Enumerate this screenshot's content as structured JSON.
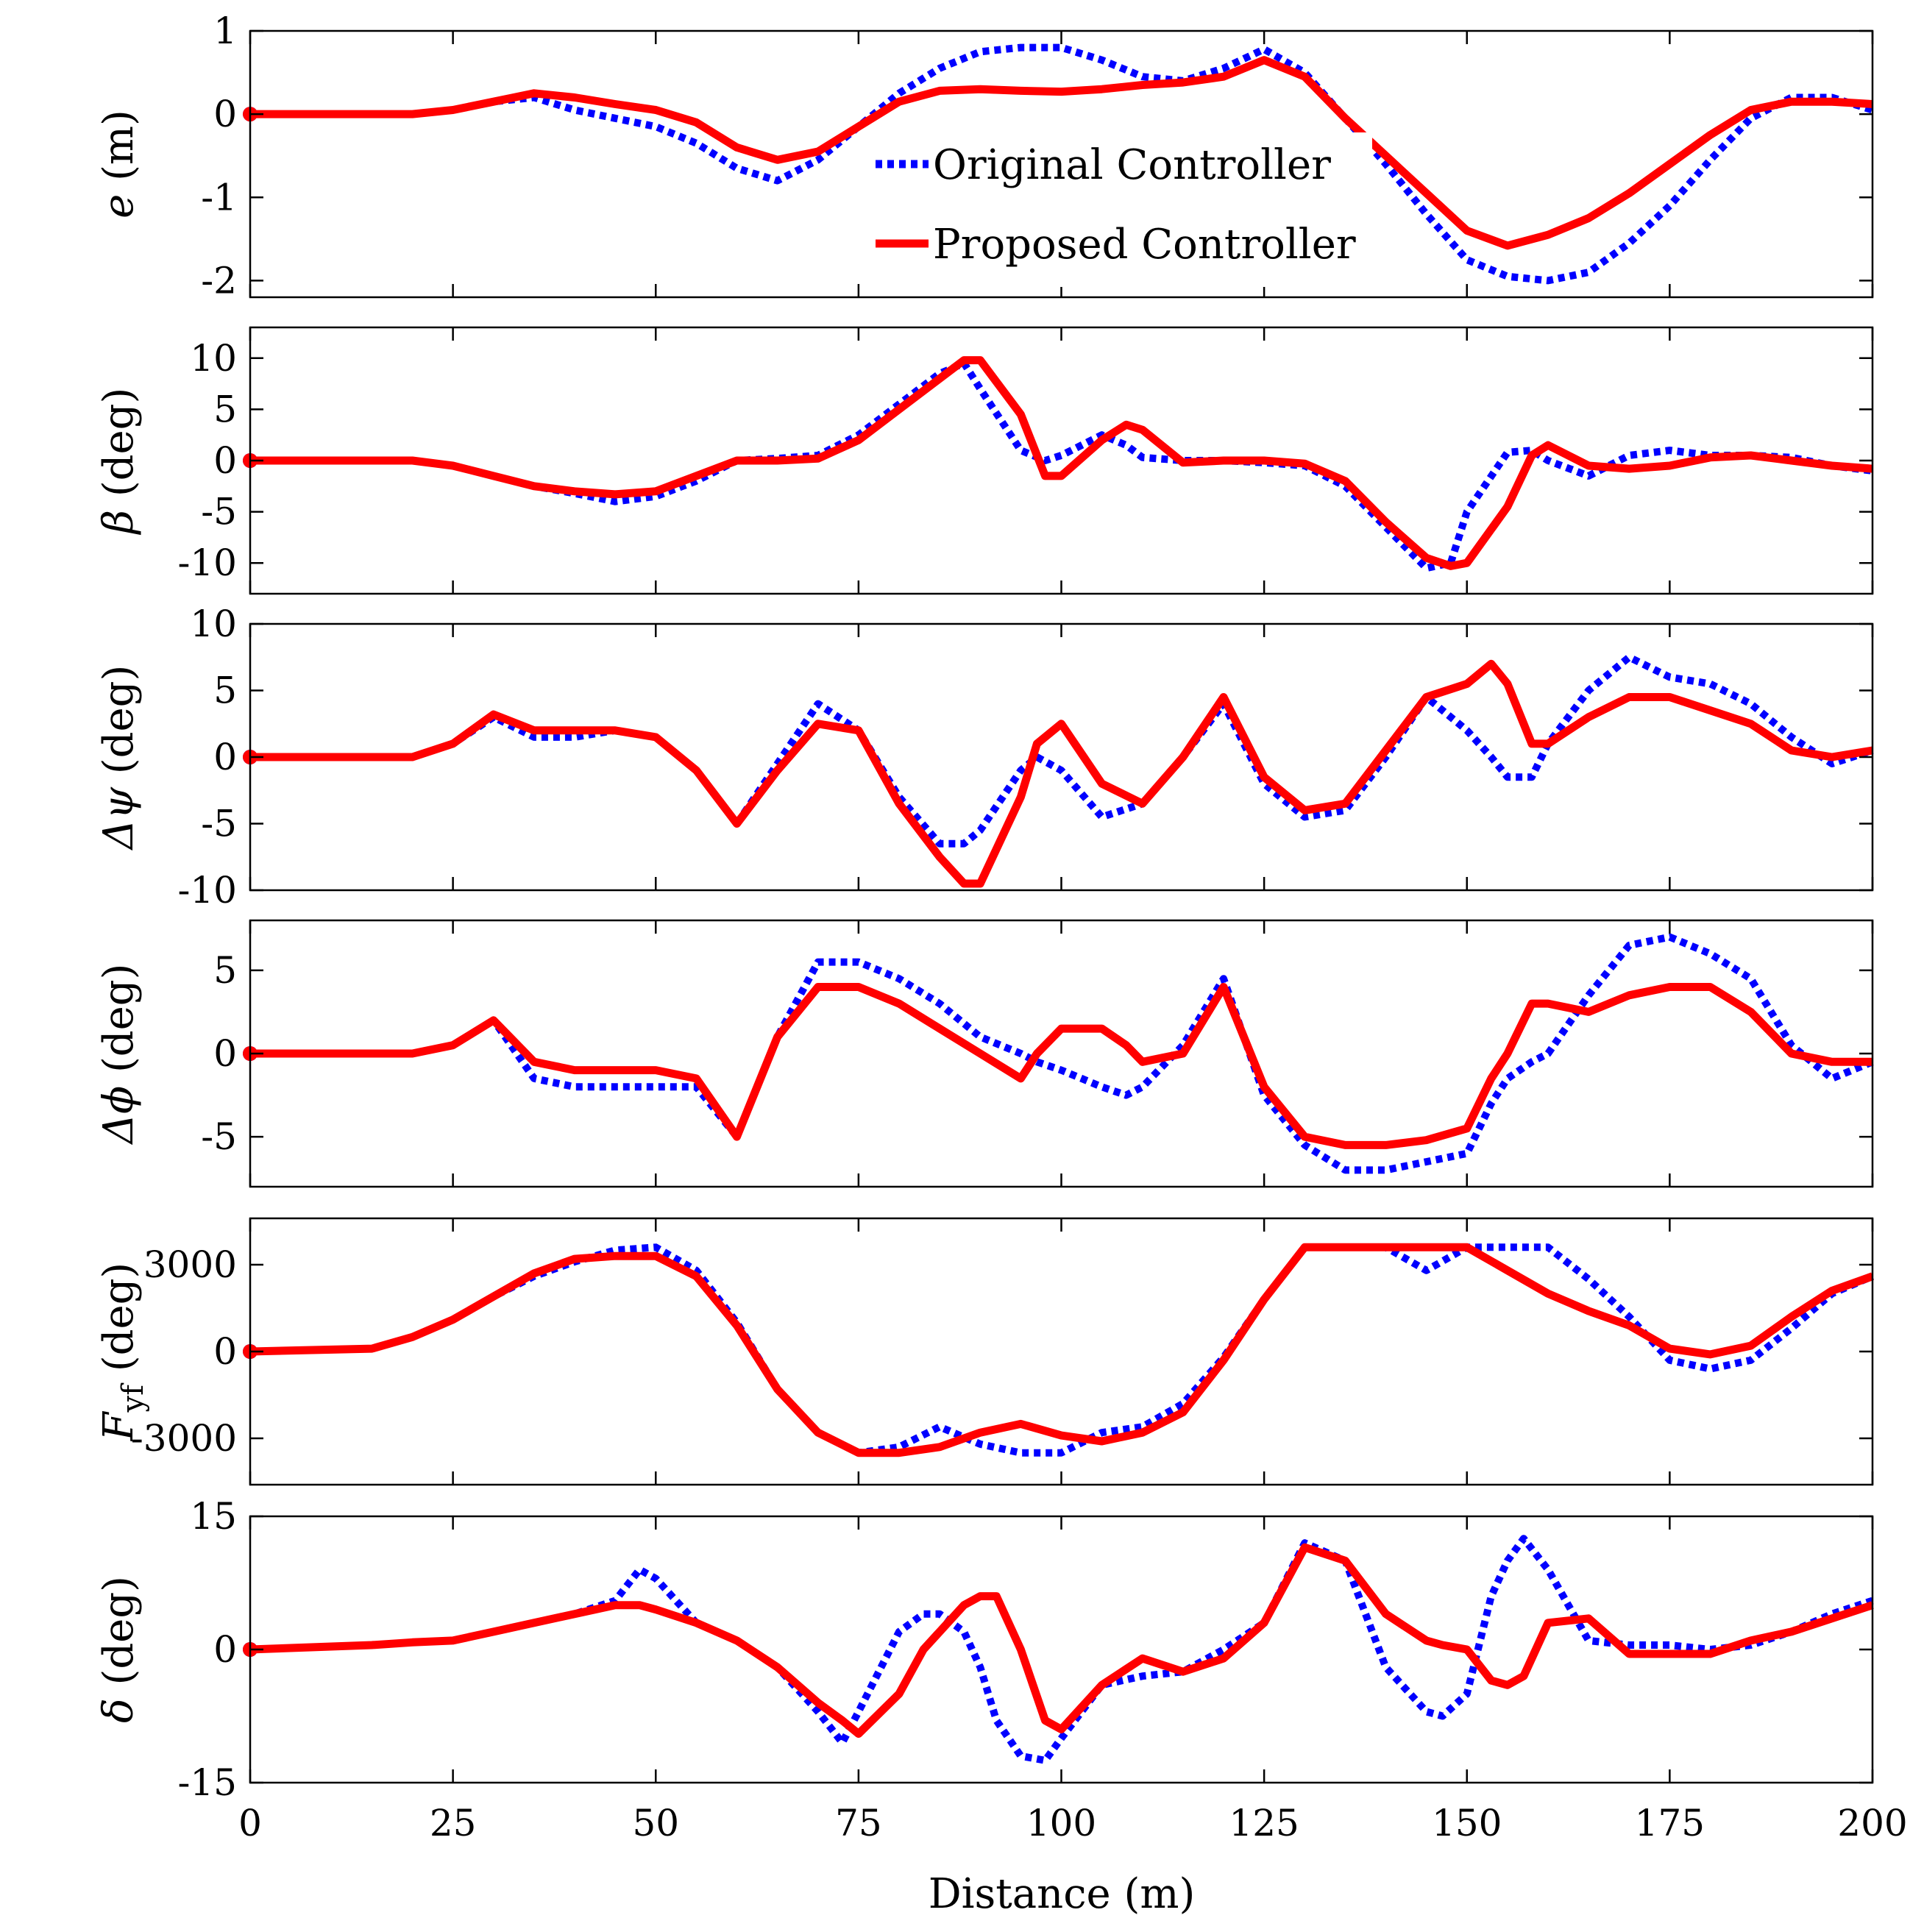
{
  "figure": {
    "xlabel": "Distance (m)",
    "xticks": [
      0,
      25,
      50,
      75,
      100,
      125,
      150,
      175,
      200
    ],
    "xlim": [
      0,
      200
    ],
    "legend": {
      "position": "inside-top-panel-center",
      "entries": [
        {
          "label": "Original Controller",
          "style": "dotted",
          "color": "#0000ff"
        },
        {
          "label": "Proposed Controller",
          "style": "solid",
          "color": "#ff0000"
        }
      ]
    }
  },
  "chart_data": [
    {
      "type": "line",
      "id": "e",
      "ylabel_main": "e",
      "ylabel_rest": " (m)",
      "ylim": [
        -2.2,
        1.0
      ],
      "yticks": [
        -2,
        -1,
        0,
        1
      ],
      "x": [
        0,
        15,
        20,
        25,
        30,
        35,
        40,
        45,
        50,
        55,
        60,
        65,
        70,
        75,
        80,
        85,
        90,
        95,
        100,
        105,
        110,
        115,
        120,
        125,
        130,
        135,
        140,
        145,
        150,
        155,
        160,
        165,
        170,
        175,
        180,
        185,
        190,
        195,
        200
      ],
      "series": [
        {
          "name": "Original Controller",
          "color": "#0000ff",
          "style": "dotted",
          "values": [
            0,
            0,
            0,
            0.05,
            0.15,
            0.2,
            0.05,
            -0.05,
            -0.15,
            -0.35,
            -0.65,
            -0.8,
            -0.55,
            -0.15,
            0.25,
            0.55,
            0.75,
            0.8,
            0.8,
            0.65,
            0.45,
            0.4,
            0.55,
            0.78,
            0.5,
            -0.05,
            -0.6,
            -1.2,
            -1.75,
            -1.95,
            -2.0,
            -1.9,
            -1.55,
            -1.1,
            -0.55,
            -0.05,
            0.2,
            0.2,
            0.05
          ]
        },
        {
          "name": "Proposed Controller",
          "color": "#ff0000",
          "style": "solid",
          "values": [
            0,
            0,
            0,
            0.05,
            0.15,
            0.25,
            0.2,
            0.12,
            0.05,
            -0.1,
            -0.4,
            -0.55,
            -0.45,
            -0.15,
            0.15,
            0.28,
            0.3,
            0.28,
            0.27,
            0.3,
            0.35,
            0.38,
            0.45,
            0.65,
            0.45,
            -0.05,
            -0.5,
            -0.95,
            -1.4,
            -1.58,
            -1.45,
            -1.25,
            -0.95,
            -0.6,
            -0.25,
            0.05,
            0.15,
            0.15,
            0.12
          ]
        }
      ]
    },
    {
      "type": "line",
      "id": "beta",
      "ylabel_main": "β",
      "ylabel_rest": " (deg)",
      "ylim": [
        -13,
        13
      ],
      "yticks": [
        -10,
        -5,
        0,
        5,
        10
      ],
      "x": [
        0,
        15,
        20,
        25,
        30,
        35,
        40,
        45,
        50,
        55,
        60,
        65,
        70,
        75,
        80,
        85,
        88,
        90,
        95,
        98,
        100,
        105,
        108,
        110,
        115,
        120,
        125,
        130,
        135,
        140,
        145,
        148,
        150,
        155,
        158,
        160,
        165,
        170,
        175,
        180,
        185,
        190,
        195,
        200
      ],
      "series": [
        {
          "name": "Original Controller",
          "color": "#0000ff",
          "style": "dotted",
          "values": [
            0,
            0,
            0,
            -0.5,
            -1.5,
            -2.5,
            -3.2,
            -4.0,
            -3.5,
            -2.0,
            0,
            0.2,
            0.5,
            2.5,
            5.5,
            8.5,
            9.5,
            7.0,
            1.0,
            0,
            0.5,
            2.5,
            1.5,
            0.3,
            0,
            0,
            -0.2,
            -0.5,
            -2.5,
            -6.5,
            -10.5,
            -10.0,
            -5.0,
            0.8,
            1.0,
            0,
            -1.5,
            0.5,
            1.0,
            0.5,
            0.5,
            0.3,
            -0.5,
            -1.0
          ]
        },
        {
          "name": "Proposed Controller",
          "color": "#ff0000",
          "style": "solid",
          "values": [
            0,
            0,
            0,
            -0.5,
            -1.5,
            -2.5,
            -3.0,
            -3.3,
            -3.0,
            -1.5,
            0,
            0,
            0.2,
            2.0,
            5.0,
            8.0,
            9.8,
            9.8,
            4.5,
            -1.5,
            -1.5,
            2.0,
            3.5,
            3.0,
            -0.2,
            0,
            0,
            -0.3,
            -2.0,
            -6.0,
            -9.5,
            -10.3,
            -10.0,
            -4.5,
            0.5,
            1.5,
            -0.5,
            -0.8,
            -0.5,
            0.3,
            0.5,
            0,
            -0.5,
            -0.8
          ]
        }
      ]
    },
    {
      "type": "line",
      "id": "dpsi",
      "ylabel_main": "Δψ",
      "ylabel_rest": " (deg)",
      "ylim": [
        -10,
        10
      ],
      "yticks": [
        -10,
        -5,
        0,
        5,
        10
      ],
      "x": [
        0,
        15,
        20,
        25,
        30,
        35,
        40,
        45,
        50,
        55,
        60,
        65,
        70,
        75,
        80,
        85,
        88,
        90,
        95,
        97,
        100,
        105,
        110,
        115,
        120,
        125,
        130,
        135,
        140,
        145,
        150,
        153,
        155,
        158,
        160,
        165,
        170,
        175,
        180,
        185,
        190,
        195,
        200
      ],
      "series": [
        {
          "name": "Original Controller",
          "color": "#0000ff",
          "style": "dotted",
          "values": [
            0,
            0,
            0,
            1.0,
            3.0,
            1.5,
            1.5,
            2.0,
            1.5,
            -1.0,
            -5.0,
            -0.5,
            4.0,
            2.0,
            -3.0,
            -6.5,
            -6.5,
            -5.5,
            -1.0,
            0,
            -1.0,
            -4.5,
            -3.5,
            0,
            4.0,
            -2.0,
            -4.5,
            -4.0,
            0,
            4.5,
            2.0,
            0,
            -1.5,
            -1.5,
            1.0,
            5.0,
            7.5,
            6.0,
            5.5,
            4.0,
            1.5,
            -0.5,
            0.5
          ]
        },
        {
          "name": "Proposed Controller",
          "color": "#ff0000",
          "style": "solid",
          "values": [
            0,
            0,
            0,
            1.0,
            3.2,
            2.0,
            2.0,
            2.0,
            1.5,
            -1.0,
            -5.0,
            -1.0,
            2.5,
            2.0,
            -3.5,
            -7.5,
            -9.5,
            -9.5,
            -3.0,
            1.0,
            2.5,
            -2.0,
            -3.5,
            0,
            4.5,
            -1.5,
            -4.0,
            -3.5,
            0.5,
            4.5,
            5.5,
            7.0,
            5.5,
            1.0,
            1.0,
            3.0,
            4.5,
            4.5,
            3.5,
            2.5,
            0.5,
            0,
            0.5
          ]
        }
      ]
    },
    {
      "type": "line",
      "id": "dphi",
      "ylabel_main": "Δϕ",
      "ylabel_rest": " (deg)",
      "ylim": [
        -8,
        8
      ],
      "yticks": [
        -5,
        0,
        5
      ],
      "x": [
        0,
        15,
        20,
        25,
        30,
        35,
        40,
        45,
        50,
        55,
        60,
        65,
        70,
        75,
        80,
        85,
        90,
        95,
        97,
        100,
        105,
        108,
        110,
        115,
        120,
        125,
        130,
        135,
        140,
        145,
        150,
        153,
        155,
        158,
        160,
        165,
        170,
        175,
        180,
        185,
        190,
        195,
        200
      ],
      "series": [
        {
          "name": "Original Controller",
          "color": "#0000ff",
          "style": "dotted",
          "values": [
            0,
            0,
            0,
            0.5,
            2.0,
            -1.5,
            -2.0,
            -2.0,
            -2.0,
            -2.0,
            -5.0,
            1.0,
            5.5,
            5.5,
            4.5,
            3.0,
            1.0,
            0,
            -0.5,
            -1.0,
            -2.0,
            -2.5,
            -2.0,
            0.5,
            4.5,
            -2.5,
            -5.5,
            -7.0,
            -7.0,
            -6.5,
            -6.0,
            -3.0,
            -1.5,
            -0.5,
            0,
            3.5,
            6.5,
            7.0,
            6.0,
            4.5,
            0.5,
            -1.5,
            -0.5
          ]
        },
        {
          "name": "Proposed Controller",
          "color": "#ff0000",
          "style": "solid",
          "values": [
            0,
            0,
            0,
            0.5,
            2.0,
            -0.5,
            -1.0,
            -1.0,
            -1.0,
            -1.5,
            -5.0,
            1.0,
            4.0,
            4.0,
            3.0,
            1.5,
            0,
            -1.5,
            0,
            1.5,
            1.5,
            0.5,
            -0.5,
            0,
            4.0,
            -2.0,
            -5.0,
            -5.5,
            -5.5,
            -5.2,
            -4.5,
            -1.5,
            0,
            3.0,
            3.0,
            2.5,
            3.5,
            4.0,
            4.0,
            2.5,
            0,
            -0.5,
            -0.5
          ]
        }
      ]
    },
    {
      "type": "line",
      "id": "Fyf",
      "ylabel_main": "F",
      "ylabel_sub": "yf",
      "ylabel_rest": " (deg)",
      "ylim": [
        -4600,
        4600
      ],
      "yticks": [
        -3000,
        0,
        3000
      ],
      "x": [
        0,
        15,
        20,
        25,
        30,
        35,
        40,
        45,
        50,
        55,
        60,
        65,
        70,
        75,
        80,
        85,
        90,
        95,
        100,
        105,
        110,
        115,
        120,
        125,
        130,
        135,
        140,
        145,
        150,
        155,
        160,
        165,
        170,
        175,
        180,
        185,
        190,
        195,
        200
      ],
      "series": [
        {
          "name": "Original Controller",
          "color": "#0000ff",
          "style": "dotted",
          "values": [
            0,
            100,
            500,
            1100,
            1900,
            2600,
            3100,
            3500,
            3600,
            2800,
            1000,
            -1300,
            -2800,
            -3500,
            -3300,
            -2600,
            -3200,
            -3500,
            -3500,
            -2800,
            -2600,
            -1800,
            -200,
            1800,
            3600,
            3600,
            3600,
            2800,
            3600,
            3600,
            3600,
            2500,
            1200,
            -300,
            -600,
            -300,
            800,
            2000,
            2600
          ]
        },
        {
          "name": "Proposed Controller",
          "color": "#ff0000",
          "style": "solid",
          "values": [
            0,
            100,
            500,
            1100,
            1900,
            2700,
            3200,
            3300,
            3300,
            2600,
            900,
            -1300,
            -2800,
            -3500,
            -3500,
            -3300,
            -2800,
            -2500,
            -2900,
            -3100,
            -2800,
            -2100,
            -300,
            1800,
            3600,
            3600,
            3600,
            3600,
            3600,
            2800,
            2000,
            1400,
            900,
            100,
            -100,
            200,
            1200,
            2100,
            2600
          ]
        }
      ]
    },
    {
      "type": "line",
      "id": "delta",
      "ylabel_main": "δ",
      "ylabel_rest": " (deg)",
      "ylim": [
        -15,
        15
      ],
      "yticks": [
        -15,
        0,
        15
      ],
      "x": [
        0,
        15,
        20,
        25,
        30,
        35,
        40,
        45,
        48,
        50,
        55,
        60,
        65,
        70,
        73,
        75,
        80,
        83,
        85,
        88,
        90,
        92,
        95,
        98,
        100,
        105,
        110,
        115,
        120,
        125,
        130,
        135,
        140,
        145,
        147,
        150,
        153,
        155,
        157,
        160,
        165,
        170,
        175,
        180,
        185,
        190,
        195,
        200
      ],
      "series": [
        {
          "name": "Original Controller",
          "color": "#0000ff",
          "style": "dotted",
          "values": [
            0,
            0.5,
            0.8,
            1.0,
            2.0,
            3.0,
            4.0,
            5.5,
            9.0,
            8.0,
            3.0,
            1.0,
            -2.0,
            -7.0,
            -10.5,
            -7.0,
            2.0,
            4.0,
            4.0,
            2.0,
            -2.0,
            -8.0,
            -12.0,
            -12.5,
            -10.0,
            -4.0,
            -3.0,
            -2.5,
            0,
            3.0,
            12.0,
            10.0,
            -2.0,
            -7.0,
            -7.5,
            -5.0,
            6.0,
            10.0,
            12.5,
            9.0,
            1.0,
            0.5,
            0.5,
            0,
            0.5,
            2.0,
            4.0,
            5.5
          ]
        },
        {
          "name": "Proposed Controller",
          "color": "#ff0000",
          "style": "solid",
          "values": [
            0,
            0.5,
            0.8,
            1.0,
            2.0,
            3.0,
            4.0,
            5.0,
            5.0,
            4.5,
            3.0,
            1.0,
            -2.0,
            -6.0,
            -8.0,
            -9.5,
            -5.0,
            0,
            2.0,
            5.0,
            6.0,
            6.0,
            0,
            -8.0,
            -9.0,
            -4.0,
            -1.0,
            -2.5,
            -1.0,
            3.0,
            11.5,
            10.0,
            4.0,
            1.0,
            0.5,
            0,
            -3.5,
            -4.0,
            -3.0,
            3.0,
            3.5,
            -0.5,
            -0.5,
            -0.5,
            1.0,
            2.0,
            3.5,
            5.0
          ]
        }
      ]
    }
  ]
}
